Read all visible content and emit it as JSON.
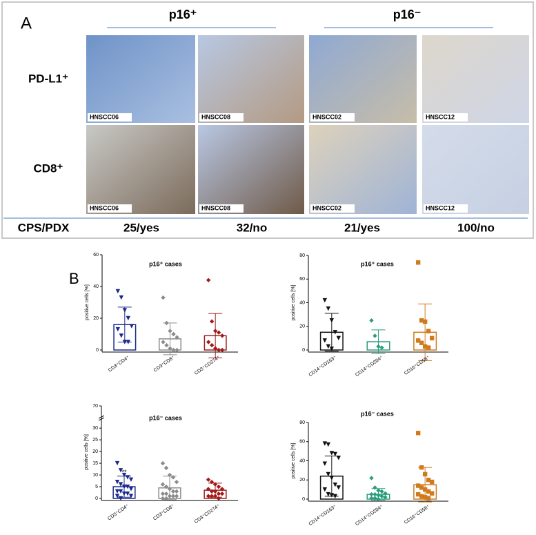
{
  "panel_a": {
    "label": "A",
    "columns": [
      "p16⁺",
      "p16⁻"
    ],
    "rows": [
      "PD-L1⁺",
      "CD8⁺"
    ],
    "images": [
      [
        "HNSCC06",
        "HNSCC08",
        "HNSCC02",
        "HNSCC12"
      ],
      [
        "HNSCC06",
        "HNSCC08",
        "HNSCC02",
        "HNSCC12"
      ]
    ],
    "footer_label": "CPS/PDX",
    "footer": [
      "25/yes",
      "32/no",
      "21/yes",
      "100/no"
    ]
  },
  "panel_b": {
    "label": "B"
  },
  "chart_data": [
    {
      "type": "bar",
      "title": "p16⁺ cases",
      "ylabel": "positive cells [%]",
      "categories": [
        "CD3⁺CD4⁺",
        "CD3⁺CD8⁺",
        "CD3⁺CD274⁺"
      ],
      "values": [
        16,
        7,
        9
      ],
      "errors": [
        11,
        10,
        14
      ],
      "points": [
        [
          37,
          33,
          25,
          20,
          15,
          13,
          9,
          5,
          5
        ],
        [
          33,
          17,
          12,
          10,
          8,
          5,
          3,
          1,
          0,
          0
        ],
        [
          44,
          18,
          12,
          11,
          9,
          5,
          3,
          1,
          0,
          0
        ]
      ],
      "colors": [
        "#1c2a8a",
        "#8c8c8c",
        "#a11b1b"
      ],
      "markers": [
        "v",
        "D",
        "D"
      ],
      "ylim": [
        0,
        60
      ],
      "yticks": [
        0,
        20,
        40,
        60
      ]
    },
    {
      "type": "bar",
      "title": "p16⁺ cases",
      "ylabel": "positive cells [%]",
      "categories": [
        "CD14⁺CD163⁺",
        "CD14⁺CD204⁺",
        "CD16⁺CD56⁺"
      ],
      "values": [
        15,
        7,
        15
      ],
      "errors": [
        16,
        10,
        24
      ],
      "points": [
        [
          42,
          35,
          25,
          15,
          10,
          8,
          3,
          1
        ],
        [
          25,
          12,
          3,
          2
        ],
        [
          74,
          25,
          24,
          16,
          10,
          8,
          6,
          3,
          2
        ]
      ],
      "colors": [
        "#111111",
        "#2a9d7a",
        "#d07a1e"
      ],
      "markers": [
        "v",
        "D",
        "s"
      ],
      "ylim": [
        0,
        80
      ],
      "yticks": [
        0,
        20,
        40,
        60,
        80
      ]
    },
    {
      "type": "bar",
      "title": "p16⁻ cases",
      "ylabel": "positive cells [%]",
      "annotation": "**",
      "categories": [
        "CD3⁺CD4⁺",
        "CD3⁺CD8⁺",
        "CD3⁺CD274⁺"
      ],
      "values": [
        5,
        4.5,
        3.5
      ],
      "errors": [
        4.5,
        5,
        3
      ],
      "points": [
        [
          15,
          12,
          10,
          9,
          8,
          7,
          6,
          5,
          5,
          4,
          3,
          3,
          2,
          2,
          1,
          1,
          0
        ],
        [
          15,
          13,
          10,
          9,
          7,
          6,
          5,
          4,
          3,
          3,
          2,
          2,
          1,
          1,
          1,
          0,
          0
        ],
        [
          8,
          7,
          6,
          5,
          4,
          4,
          3,
          3,
          2,
          2,
          1,
          1,
          1,
          0
        ]
      ],
      "colors": [
        "#1c2a8a",
        "#8c8c8c",
        "#a11b1b"
      ],
      "markers": [
        "v",
        "D",
        "D"
      ],
      "ylim": [
        0,
        70
      ],
      "ybreak": [
        30,
        70
      ],
      "yticks": [
        0,
        5,
        10,
        15,
        20,
        25,
        30,
        70
      ]
    },
    {
      "type": "bar",
      "title": "p16⁻ cases",
      "ylabel": "positive cells [%]",
      "categories": [
        "CD14⁺CD163⁺",
        "CD14⁺CD204⁺",
        "CD16⁺CD56⁺"
      ],
      "values": [
        24,
        5,
        15
      ],
      "errors": [
        21,
        6,
        18
      ],
      "points": [
        [
          58,
          57,
          48,
          47,
          43,
          37,
          26,
          22,
          15,
          12,
          10,
          5,
          4,
          3
        ],
        [
          22,
          12,
          9,
          8,
          6,
          5,
          5,
          4,
          3,
          2,
          1,
          1,
          0
        ],
        [
          69,
          33,
          26,
          20,
          18,
          14,
          12,
          10,
          8,
          6,
          5,
          3,
          2,
          1
        ]
      ],
      "colors": [
        "#111111",
        "#2a9d7a",
        "#d07a1e"
      ],
      "markers": [
        "v",
        "D",
        "s"
      ],
      "ylim": [
        0,
        80
      ],
      "yticks": [
        0,
        20,
        40,
        60,
        80
      ]
    }
  ]
}
